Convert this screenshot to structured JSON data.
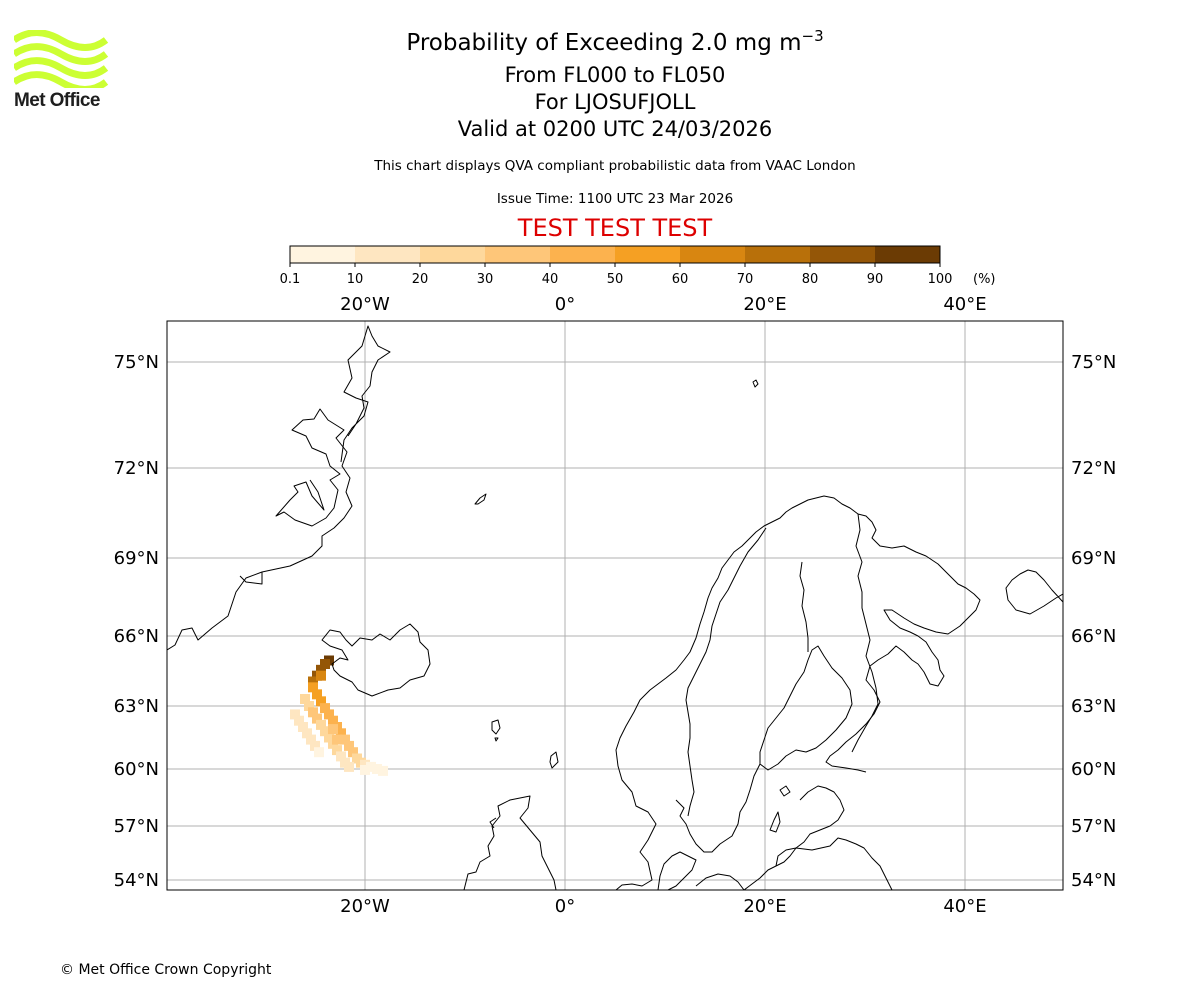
{
  "header": {
    "title_prefix": "Probability of Exceeding 2.0 mg m",
    "title_exponent": "−3",
    "flight_levels": "From FL000 to FL050",
    "volcano": "For LJOSUFJOLL",
    "valid_time": "Valid at 0200 UTC 24/03/2026",
    "subtitle": "This chart displays QVA compliant probabilistic data from VAAC London",
    "issue_time": "Issue Time: 1100 UTC 23 Mar 2026",
    "test_banner": "TEST TEST TEST",
    "test_banner_color": "#dd0000"
  },
  "logo": {
    "text": "Met Office",
    "wave_color": "#ccff33"
  },
  "footer": {
    "copyright": "© Met Office Crown Copyright"
  },
  "colorbar": {
    "unit_label": "(%)",
    "boundaries": [
      "0.1",
      "10",
      "20",
      "30",
      "40",
      "50",
      "60",
      "70",
      "80",
      "90",
      "100"
    ],
    "colors": [
      "#fff4e0",
      "#fee6c1",
      "#fed89c",
      "#fec679",
      "#fcb24e",
      "#f5a023",
      "#d88611",
      "#b8700a",
      "#945607",
      "#6b3b04"
    ]
  },
  "map": {
    "longitude_labels": [
      {
        "lon": -20,
        "label": "20°W"
      },
      {
        "lon": 0,
        "label": "0°"
      },
      {
        "lon": 20,
        "label": "20°E"
      },
      {
        "lon": 40,
        "label": "40°E"
      }
    ],
    "latitude_labels": [
      {
        "lat": 75,
        "label": "75°N"
      },
      {
        "lat": 72,
        "label": "72°N"
      },
      {
        "lat": 69,
        "label": "69°N"
      },
      {
        "lat": 66,
        "label": "66°N"
      },
      {
        "lat": 63,
        "label": "63°N"
      },
      {
        "lat": 60,
        "label": "60°N"
      },
      {
        "lat": 57,
        "label": "57°N"
      },
      {
        "lat": 54,
        "label": "54°N"
      }
    ],
    "plume_cells": [
      {
        "lon": -23.6,
        "lat": 64.95,
        "p": 95
      },
      {
        "lon": -24.0,
        "lat": 64.8,
        "p": 88
      },
      {
        "lon": -24.4,
        "lat": 64.55,
        "p": 85
      },
      {
        "lon": -24.8,
        "lat": 64.3,
        "p": 80
      },
      {
        "lon": -25.2,
        "lat": 64.05,
        "p": 70
      },
      {
        "lon": -24.4,
        "lat": 64.3,
        "p": 62
      },
      {
        "lon": -25.2,
        "lat": 63.8,
        "p": 55
      },
      {
        "lon": -24.8,
        "lat": 63.5,
        "p": 55
      },
      {
        "lon": -24.4,
        "lat": 63.2,
        "p": 50
      },
      {
        "lon": -24.0,
        "lat": 62.9,
        "p": 48
      },
      {
        "lon": -23.6,
        "lat": 62.6,
        "p": 45
      },
      {
        "lon": -23.2,
        "lat": 62.3,
        "p": 45
      },
      {
        "lon": -22.8,
        "lat": 62.0,
        "p": 42
      },
      {
        "lon": -22.4,
        "lat": 61.7,
        "p": 40
      },
      {
        "lon": -22.0,
        "lat": 61.4,
        "p": 38
      },
      {
        "lon": -21.6,
        "lat": 61.1,
        "p": 35
      },
      {
        "lon": -21.2,
        "lat": 60.8,
        "p": 32
      },
      {
        "lon": -20.8,
        "lat": 60.5,
        "p": 28
      },
      {
        "lon": -20.4,
        "lat": 60.3,
        "p": 22
      },
      {
        "lon": -26.0,
        "lat": 63.3,
        "p": 25
      },
      {
        "lon": -25.6,
        "lat": 63.0,
        "p": 28
      },
      {
        "lon": -25.2,
        "lat": 62.7,
        "p": 30
      },
      {
        "lon": -24.8,
        "lat": 62.4,
        "p": 30
      },
      {
        "lon": -24.4,
        "lat": 62.1,
        "p": 28
      },
      {
        "lon": -24.0,
        "lat": 61.8,
        "p": 26
      },
      {
        "lon": -23.6,
        "lat": 61.5,
        "p": 24
      },
      {
        "lon": -23.2,
        "lat": 61.2,
        "p": 22
      },
      {
        "lon": -22.8,
        "lat": 60.9,
        "p": 20
      },
      {
        "lon": -22.4,
        "lat": 60.6,
        "p": 18
      },
      {
        "lon": -22.0,
        "lat": 60.3,
        "p": 15
      },
      {
        "lon": -21.6,
        "lat": 60.1,
        "p": 12
      },
      {
        "lon": -27.0,
        "lat": 62.6,
        "p": 12
      },
      {
        "lon": -26.6,
        "lat": 62.3,
        "p": 14
      },
      {
        "lon": -26.2,
        "lat": 62.0,
        "p": 15
      },
      {
        "lon": -25.8,
        "lat": 61.7,
        "p": 14
      },
      {
        "lon": -25.4,
        "lat": 61.4,
        "p": 12
      },
      {
        "lon": -25.0,
        "lat": 61.1,
        "p": 10
      },
      {
        "lon": -24.6,
        "lat": 60.8,
        "p": 8
      },
      {
        "lon": -23.2,
        "lat": 61.9,
        "p": 35
      },
      {
        "lon": -22.8,
        "lat": 61.4,
        "p": 30
      },
      {
        "lon": -20.0,
        "lat": 60.2,
        "p": 12
      },
      {
        "lon": -19.4,
        "lat": 60.1,
        "p": 8
      },
      {
        "lon": -18.8,
        "lat": 60.0,
        "p": 5
      },
      {
        "lon": -18.2,
        "lat": 59.9,
        "p": 3
      },
      {
        "lon": -20.0,
        "lat": 59.95,
        "p": 8
      }
    ]
  }
}
